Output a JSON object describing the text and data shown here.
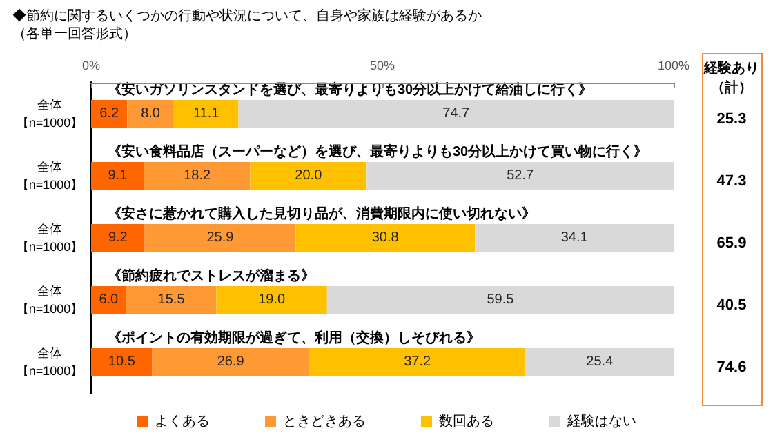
{
  "chart_data": {
    "type": "bar",
    "orientation": "horizontal",
    "stacked": true,
    "title": "◆節約に関するいくつかの行動や状況について、自身や家族は経験があるか",
    "subtitle": "（各単一回答形式）",
    "categories": [
      "全体【n=1000】",
      "全体【n=1000】",
      "全体【n=1000】",
      "全体【n=1000】",
      "全体【n=1000】"
    ],
    "series": [
      {
        "name": "よくある",
        "color": "#ff6600",
        "values": [
          6.2,
          9.1,
          9.2,
          6.0,
          10.5
        ],
        "value_labels": [
          "6.2",
          "9.1",
          "9.2",
          "6.0",
          "10.5"
        ]
      },
      {
        "name": "ときどきある",
        "color": "#ff9933",
        "values": [
          8.0,
          18.2,
          25.9,
          15.5,
          26.9
        ],
        "value_labels": [
          "8.0",
          "18.2",
          "25.9",
          "15.5",
          "26.9"
        ]
      },
      {
        "name": "数回ある",
        "color": "#ffc000",
        "values": [
          11.1,
          20.0,
          30.8,
          19.0,
          37.2
        ],
        "value_labels": [
          "11.1",
          "20.0",
          "30.8",
          "19.0",
          "37.2"
        ]
      },
      {
        "name": "経験はない",
        "color": "#d9d9d9",
        "values": [
          74.7,
          52.7,
          34.1,
          59.5,
          25.4
        ],
        "value_labels": [
          "74.7",
          "52.7",
          "34.1",
          "59.5",
          "25.4"
        ]
      }
    ],
    "xlim": [
      0,
      100
    ],
    "xticks": [
      {
        "value": 0,
        "label": "0%"
      },
      {
        "value": 50,
        "label": "50%"
      },
      {
        "value": 100,
        "label": "100%"
      }
    ],
    "legend": "bottom",
    "annotations": [
      "《安いガソリンスタンドを選び、最寄りよりも30分以上かけて給油しに行く》",
      "《安い食料品店（スーパーなど）を選び、最寄りよりも30分以上かけて買い物に行く》",
      "《安さに惹かれて購入した見切り品が、消費期限内に使い切れない》",
      "《節約疲れでストレスが溜まる》",
      "《ポイントの有効期限が過ぎて、利用（交換）しそびれる》",
      "経験あり（計）",
      "25.3",
      "47.3",
      "65.9",
      "40.5",
      "74.6"
    ]
  }
}
